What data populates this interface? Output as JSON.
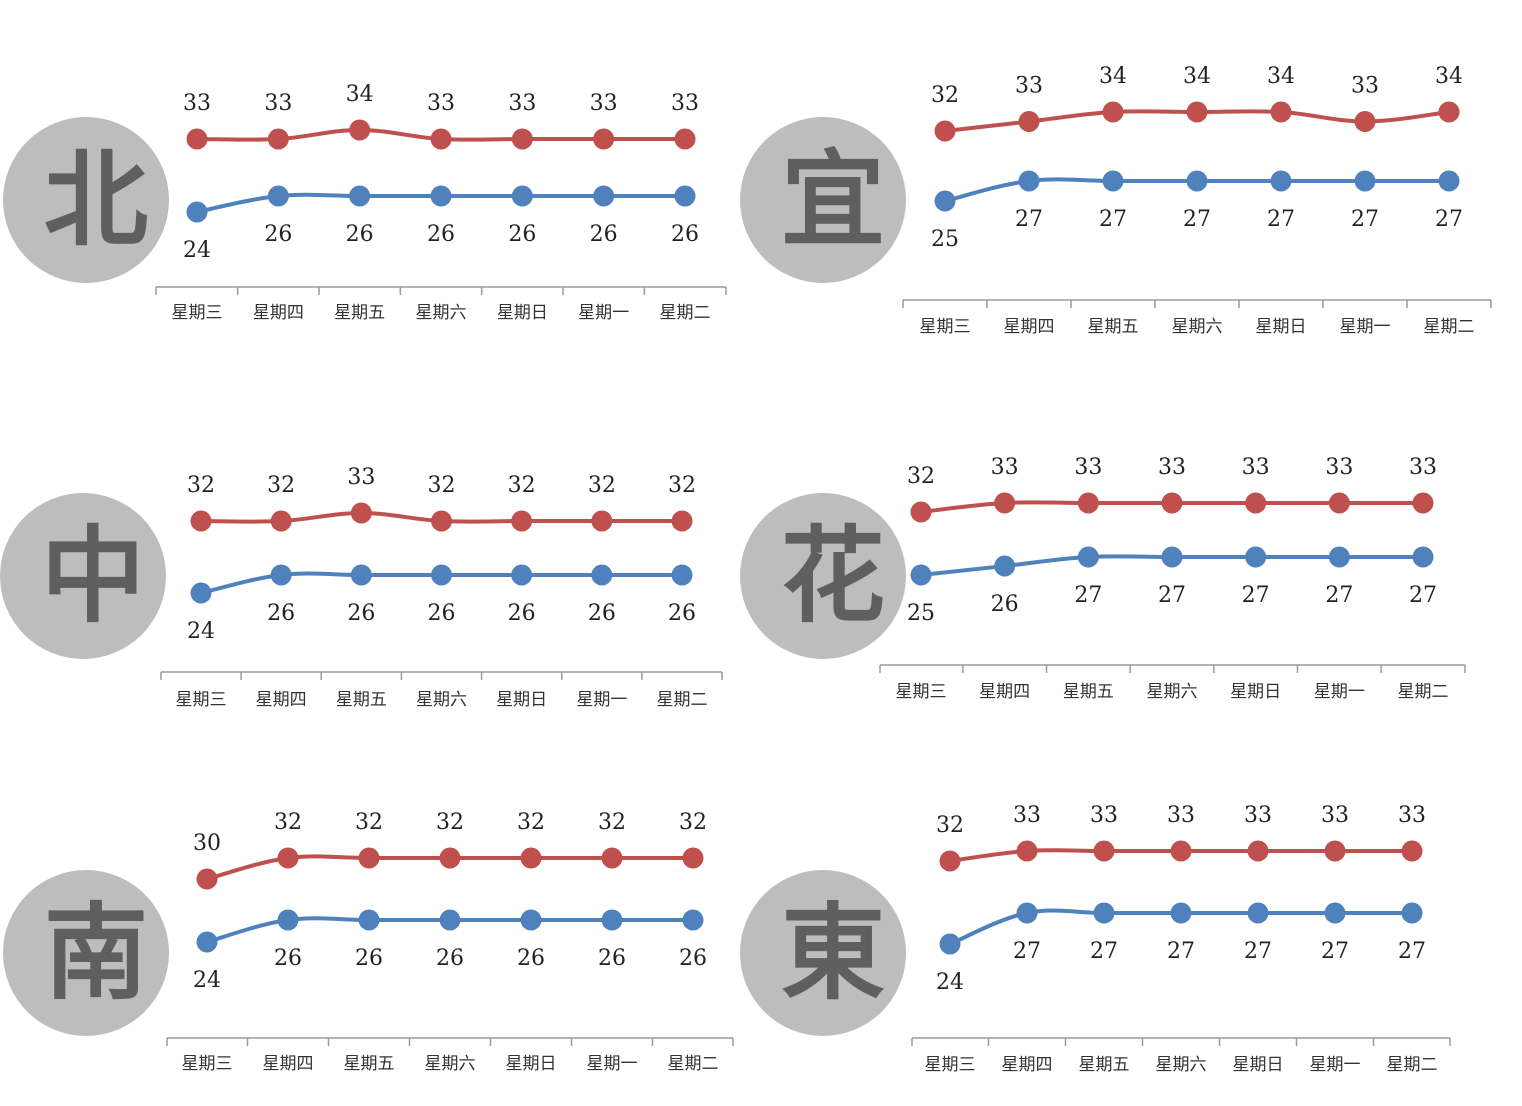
{
  "colors": {
    "high": "#c0504d",
    "low": "#4f81bd",
    "badge": "#bdbdbd",
    "badge_text": "#5f5f5f"
  },
  "chart_data": [
    {
      "type": "line",
      "region": "北",
      "categories": [
        "星期三",
        "星期四",
        "星期五",
        "星期六",
        "星期日",
        "星期一",
        "星期二"
      ],
      "series": [
        {
          "values": [
            33,
            33,
            34,
            33,
            33,
            33,
            33
          ]
        },
        {
          "values": [
            24,
            26,
            26,
            26,
            26,
            26,
            26
          ]
        }
      ]
    },
    {
      "type": "line",
      "region": "宜",
      "categories": [
        "星期三",
        "星期四",
        "星期五",
        "星期六",
        "星期日",
        "星期一",
        "星期二"
      ],
      "series": [
        {
          "values": [
            32,
            33,
            34,
            34,
            34,
            33,
            34
          ]
        },
        {
          "values": [
            25,
            27,
            27,
            27,
            27,
            27,
            27
          ]
        }
      ]
    },
    {
      "type": "line",
      "region": "中",
      "categories": [
        "星期三",
        "星期四",
        "星期五",
        "星期六",
        "星期日",
        "星期一",
        "星期二"
      ],
      "series": [
        {
          "values": [
            32,
            32,
            33,
            32,
            32,
            32,
            32
          ]
        },
        {
          "values": [
            24,
            26,
            26,
            26,
            26,
            26,
            26
          ]
        }
      ]
    },
    {
      "type": "line",
      "region": "花",
      "categories": [
        "星期三",
        "星期四",
        "星期五",
        "星期六",
        "星期日",
        "星期一",
        "星期二"
      ],
      "series": [
        {
          "values": [
            32,
            33,
            33,
            33,
            33,
            33,
            33
          ]
        },
        {
          "values": [
            25,
            26,
            27,
            27,
            27,
            27,
            27
          ]
        }
      ]
    },
    {
      "type": "line",
      "region": "南",
      "categories": [
        "星期三",
        "星期四",
        "星期五",
        "星期六",
        "星期日",
        "星期一",
        "星期二"
      ],
      "series": [
        {
          "values": [
            30,
            32,
            32,
            32,
            32,
            32,
            32
          ]
        },
        {
          "values": [
            24,
            26,
            26,
            26,
            26,
            26,
            26
          ]
        }
      ]
    },
    {
      "type": "line",
      "region": "東",
      "categories": [
        "星期三",
        "星期四",
        "星期五",
        "星期六",
        "星期日",
        "星期一",
        "星期二"
      ],
      "series": [
        {
          "values": [
            32,
            33,
            33,
            33,
            33,
            33,
            33
          ]
        },
        {
          "values": [
            24,
            27,
            27,
            27,
            27,
            27,
            27
          ]
        }
      ]
    }
  ]
}
